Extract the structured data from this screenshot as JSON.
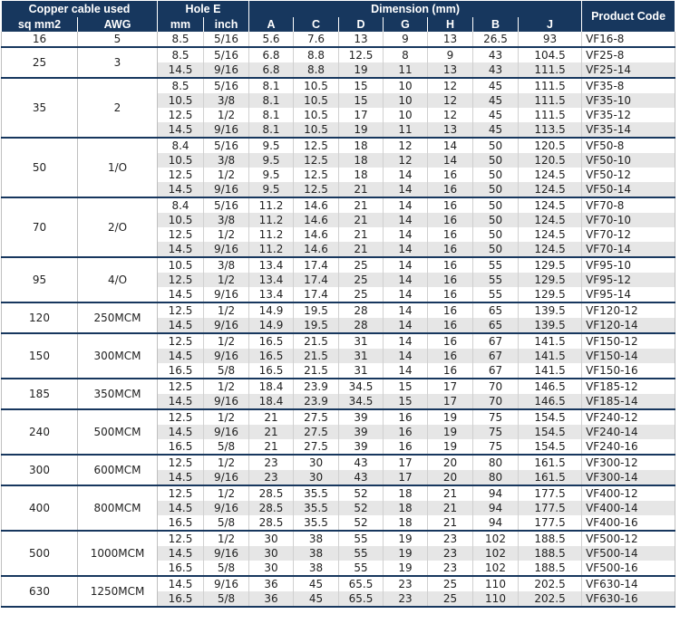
{
  "header": {
    "copper": "Copper cable used",
    "hole": "Hole E",
    "dimension": "Dimension (mm)",
    "product": "Product Code",
    "sub": [
      "sq mm2",
      "AWG",
      "mm",
      "inch",
      "A",
      "C",
      "D",
      "G",
      "H",
      "B",
      "J"
    ]
  },
  "groups": [
    {
      "sq": "16",
      "awg": "5",
      "rows": [
        {
          "mm": "8.5",
          "inch": "5/16",
          "A": "5.6",
          "C": "7.6",
          "D": "13",
          "G": "9",
          "H": "13",
          "B": "26.5",
          "J": "93",
          "code": "VF16-8"
        }
      ]
    },
    {
      "sq": "25",
      "awg": "3",
      "rows": [
        {
          "mm": "8.5",
          "inch": "5/16",
          "A": "6.8",
          "C": "8.8",
          "D": "12.5",
          "G": "8",
          "H": "9",
          "B": "43",
          "J": "104.5",
          "code": "VF25-8"
        },
        {
          "mm": "14.5",
          "inch": "9/16",
          "A": "6.8",
          "C": "8.8",
          "D": "19",
          "G": "11",
          "H": "13",
          "B": "43",
          "J": "111.5",
          "code": "VF25-14"
        }
      ]
    },
    {
      "sq": "35",
      "awg": "2",
      "rows": [
        {
          "mm": "8.5",
          "inch": "5/16",
          "A": "8.1",
          "C": "10.5",
          "D": "15",
          "G": "10",
          "H": "12",
          "B": "45",
          "J": "111.5",
          "code": "VF35-8"
        },
        {
          "mm": "10.5",
          "inch": "3/8",
          "A": "8.1",
          "C": "10.5",
          "D": "15",
          "G": "10",
          "H": "12",
          "B": "45",
          "J": "111.5",
          "code": "VF35-10"
        },
        {
          "mm": "12.5",
          "inch": "1/2",
          "A": "8.1",
          "C": "10.5",
          "D": "17",
          "G": "10",
          "H": "12",
          "B": "45",
          "J": "111.5",
          "code": "VF35-12"
        },
        {
          "mm": "14.5",
          "inch": "9/16",
          "A": "8.1",
          "C": "10.5",
          "D": "19",
          "G": "11",
          "H": "13",
          "B": "45",
          "J": "113.5",
          "code": "VF35-14"
        }
      ]
    },
    {
      "sq": "50",
      "awg": "1/O",
      "rows": [
        {
          "mm": "8.4",
          "inch": "5/16",
          "A": "9.5",
          "C": "12.5",
          "D": "18",
          "G": "12",
          "H": "14",
          "B": "50",
          "J": "120.5",
          "code": "VF50-8"
        },
        {
          "mm": "10.5",
          "inch": "3/8",
          "A": "9.5",
          "C": "12.5",
          "D": "18",
          "G": "12",
          "H": "14",
          "B": "50",
          "J": "120.5",
          "code": "VF50-10"
        },
        {
          "mm": "12.5",
          "inch": "1/2",
          "A": "9.5",
          "C": "12.5",
          "D": "18",
          "G": "14",
          "H": "16",
          "B": "50",
          "J": "124.5",
          "code": "VF50-12"
        },
        {
          "mm": "14.5",
          "inch": "9/16",
          "A": "9.5",
          "C": "12.5",
          "D": "21",
          "G": "14",
          "H": "16",
          "B": "50",
          "J": "124.5",
          "code": "VF50-14"
        }
      ]
    },
    {
      "sq": "70",
      "awg": "2/O",
      "rows": [
        {
          "mm": "8.4",
          "inch": "5/16",
          "A": "11.2",
          "C": "14.6",
          "D": "21",
          "G": "14",
          "H": "16",
          "B": "50",
          "J": "124.5",
          "code": "VF70-8"
        },
        {
          "mm": "10.5",
          "inch": "3/8",
          "A": "11.2",
          "C": "14.6",
          "D": "21",
          "G": "14",
          "H": "16",
          "B": "50",
          "J": "124.5",
          "code": "VF70-10"
        },
        {
          "mm": "12.5",
          "inch": "1/2",
          "A": "11.2",
          "C": "14.6",
          "D": "21",
          "G": "14",
          "H": "16",
          "B": "50",
          "J": "124.5",
          "code": "VF70-12"
        },
        {
          "mm": "14.5",
          "inch": "9/16",
          "A": "11.2",
          "C": "14.6",
          "D": "21",
          "G": "14",
          "H": "16",
          "B": "50",
          "J": "124.5",
          "code": "VF70-14"
        }
      ]
    },
    {
      "sq": "95",
      "awg": "4/O",
      "rows": [
        {
          "mm": "10.5",
          "inch": "3/8",
          "A": "13.4",
          "C": "17.4",
          "D": "25",
          "G": "14",
          "H": "16",
          "B": "55",
          "J": "129.5",
          "code": "VF95-10"
        },
        {
          "mm": "12.5",
          "inch": "1/2",
          "A": "13.4",
          "C": "17.4",
          "D": "25",
          "G": "14",
          "H": "16",
          "B": "55",
          "J": "129.5",
          "code": "VF95-12"
        },
        {
          "mm": "14.5",
          "inch": "9/16",
          "A": "13.4",
          "C": "17.4",
          "D": "25",
          "G": "14",
          "H": "16",
          "B": "55",
          "J": "129.5",
          "code": "VF95-14"
        }
      ]
    },
    {
      "sq": "120",
      "awg": "250MCM",
      "rows": [
        {
          "mm": "12.5",
          "inch": "1/2",
          "A": "14.9",
          "C": "19.5",
          "D": "28",
          "G": "14",
          "H": "16",
          "B": "65",
          "J": "139.5",
          "code": "VF120-12"
        },
        {
          "mm": "14.5",
          "inch": "9/16",
          "A": "14.9",
          "C": "19.5",
          "D": "28",
          "G": "14",
          "H": "16",
          "B": "65",
          "J": "139.5",
          "code": "VF120-14"
        }
      ]
    },
    {
      "sq": "150",
      "awg": "300MCM",
      "rows": [
        {
          "mm": "12.5",
          "inch": "1/2",
          "A": "16.5",
          "C": "21.5",
          "D": "31",
          "G": "14",
          "H": "16",
          "B": "67",
          "J": "141.5",
          "code": "VF150-12"
        },
        {
          "mm": "14.5",
          "inch": "9/16",
          "A": "16.5",
          "C": "21.5",
          "D": "31",
          "G": "14",
          "H": "16",
          "B": "67",
          "J": "141.5",
          "code": "VF150-14"
        },
        {
          "mm": "16.5",
          "inch": "5/8",
          "A": "16.5",
          "C": "21.5",
          "D": "31",
          "G": "14",
          "H": "16",
          "B": "67",
          "J": "141.5",
          "code": "VF150-16"
        }
      ]
    },
    {
      "sq": "185",
      "awg": "350MCM",
      "rows": [
        {
          "mm": "12.5",
          "inch": "1/2",
          "A": "18.4",
          "C": "23.9",
          "D": "34.5",
          "G": "15",
          "H": "17",
          "B": "70",
          "J": "146.5",
          "code": "VF185-12"
        },
        {
          "mm": "14.5",
          "inch": "9/16",
          "A": "18.4",
          "C": "23.9",
          "D": "34.5",
          "G": "15",
          "H": "17",
          "B": "70",
          "J": "146.5",
          "code": "VF185-14"
        }
      ]
    },
    {
      "sq": "240",
      "awg": "500MCM",
      "rows": [
        {
          "mm": "12.5",
          "inch": "1/2",
          "A": "21",
          "C": "27.5",
          "D": "39",
          "G": "16",
          "H": "19",
          "B": "75",
          "J": "154.5",
          "code": "VF240-12"
        },
        {
          "mm": "14.5",
          "inch": "9/16",
          "A": "21",
          "C": "27.5",
          "D": "39",
          "G": "16",
          "H": "19",
          "B": "75",
          "J": "154.5",
          "code": "VF240-14"
        },
        {
          "mm": "16.5",
          "inch": "5/8",
          "A": "21",
          "C": "27.5",
          "D": "39",
          "G": "16",
          "H": "19",
          "B": "75",
          "J": "154.5",
          "code": "VF240-16"
        }
      ]
    },
    {
      "sq": "300",
      "awg": "600MCM",
      "rows": [
        {
          "mm": "12.5",
          "inch": "1/2",
          "A": "23",
          "C": "30",
          "D": "43",
          "G": "17",
          "H": "20",
          "B": "80",
          "J": "161.5",
          "code": "VF300-12"
        },
        {
          "mm": "14.5",
          "inch": "9/16",
          "A": "23",
          "C": "30",
          "D": "43",
          "G": "17",
          "H": "20",
          "B": "80",
          "J": "161.5",
          "code": "VF300-14"
        }
      ]
    },
    {
      "sq": "400",
      "awg": "800MCM",
      "rows": [
        {
          "mm": "12.5",
          "inch": "1/2",
          "A": "28.5",
          "C": "35.5",
          "D": "52",
          "G": "18",
          "H": "21",
          "B": "94",
          "J": "177.5",
          "code": "VF400-12"
        },
        {
          "mm": "14.5",
          "inch": "9/16",
          "A": "28.5",
          "C": "35.5",
          "D": "52",
          "G": "18",
          "H": "21",
          "B": "94",
          "J": "177.5",
          "code": "VF400-14"
        },
        {
          "mm": "16.5",
          "inch": "5/8",
          "A": "28.5",
          "C": "35.5",
          "D": "52",
          "G": "18",
          "H": "21",
          "B": "94",
          "J": "177.5",
          "code": "VF400-16"
        }
      ]
    },
    {
      "sq": "500",
      "awg": "1000MCM",
      "rows": [
        {
          "mm": "12.5",
          "inch": "1/2",
          "A": "30",
          "C": "38",
          "D": "55",
          "G": "19",
          "H": "23",
          "B": "102",
          "J": "188.5",
          "code": "VF500-12"
        },
        {
          "mm": "14.5",
          "inch": "9/16",
          "A": "30",
          "C": "38",
          "D": "55",
          "G": "19",
          "H": "23",
          "B": "102",
          "J": "188.5",
          "code": "VF500-14"
        },
        {
          "mm": "16.5",
          "inch": "5/8",
          "A": "30",
          "C": "38",
          "D": "55",
          "G": "19",
          "H": "23",
          "B": "102",
          "J": "188.5",
          "code": "VF500-16"
        }
      ]
    },
    {
      "sq": "630",
      "awg": "1250MCM",
      "rows": [
        {
          "mm": "14.5",
          "inch": "9/16",
          "A": "36",
          "C": "45",
          "D": "65.5",
          "G": "23",
          "H": "25",
          "B": "110",
          "J": "202.5",
          "code": "VF630-14"
        },
        {
          "mm": "16.5",
          "inch": "5/8",
          "A": "36",
          "C": "45",
          "D": "65.5",
          "G": "23",
          "H": "25",
          "B": "110",
          "J": "202.5",
          "code": "VF630-16"
        }
      ]
    }
  ]
}
